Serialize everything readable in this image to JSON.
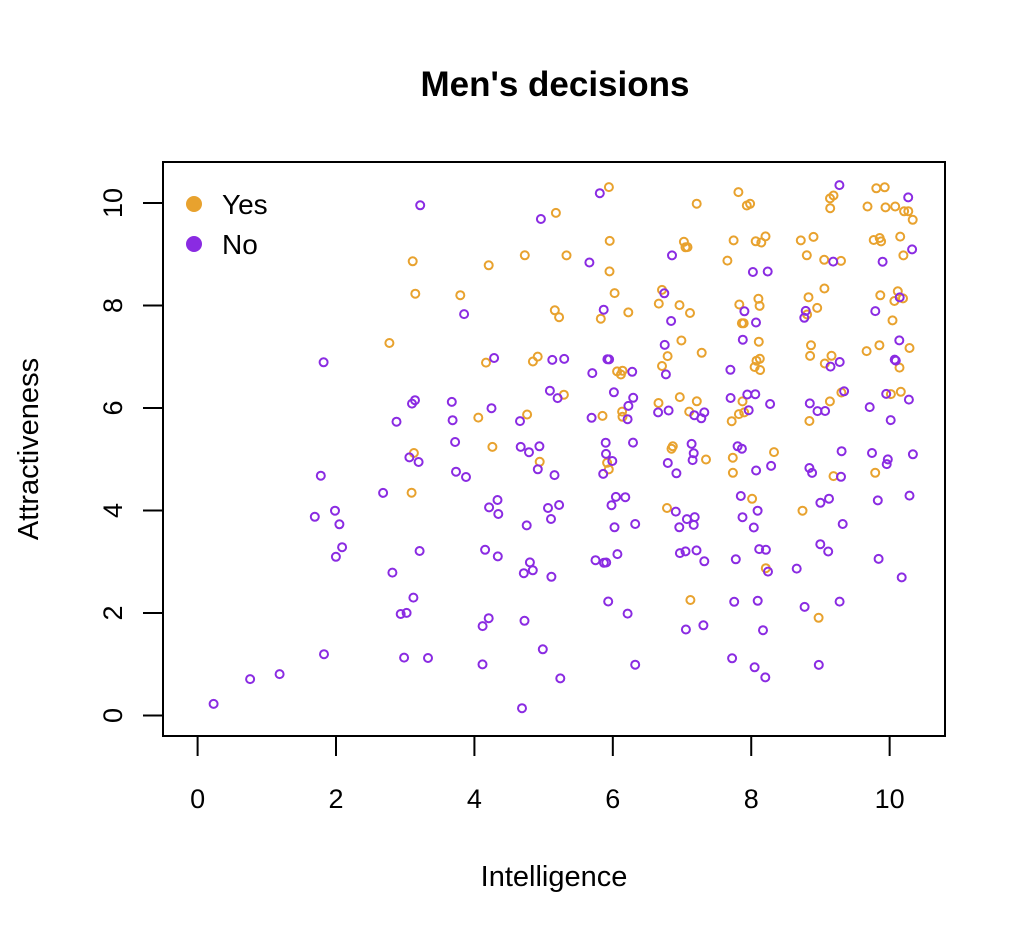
{
  "chart_data": {
    "type": "scatter",
    "title": "Men's decisions",
    "xlabel": "Intelligence",
    "ylabel": "Attractiveness",
    "xlim": [
      -0.5,
      10.8
    ],
    "ylim": [
      -0.4,
      10.8
    ],
    "xticks": [
      0,
      2,
      4,
      6,
      8,
      10
    ],
    "yticks": [
      0,
      2,
      4,
      6,
      8,
      10
    ],
    "grid": false,
    "legend_position": "top-left",
    "jitter": 0.35,
    "series": [
      {
        "name": "Yes",
        "color": "#E8A22E",
        "points": [
          [
            3,
            9
          ],
          [
            3,
            4
          ],
          [
            3,
            5
          ],
          [
            3,
            7
          ],
          [
            3,
            8
          ],
          [
            4,
            7
          ],
          [
            4,
            9
          ],
          [
            4,
            6
          ],
          [
            4,
            8
          ],
          [
            4,
            5
          ],
          [
            5,
            9
          ],
          [
            5,
            8
          ],
          [
            5,
            7
          ],
          [
            5,
            6
          ],
          [
            5,
            5
          ],
          [
            5,
            8
          ],
          [
            5,
            6
          ],
          [
            5,
            7
          ],
          [
            5,
            9
          ],
          [
            5,
            10
          ],
          [
            6,
            9
          ],
          [
            6,
            8
          ],
          [
            6,
            8
          ],
          [
            6,
            7
          ],
          [
            6,
            7
          ],
          [
            6,
            6
          ],
          [
            6,
            6
          ],
          [
            6,
            5
          ],
          [
            6,
            10
          ],
          [
            6,
            9
          ],
          [
            6,
            8
          ],
          [
            6,
            7
          ],
          [
            6,
            6
          ],
          [
            6,
            5
          ],
          [
            7,
            10
          ],
          [
            7,
            9
          ],
          [
            7,
            9
          ],
          [
            7,
            8
          ],
          [
            7,
            8
          ],
          [
            7,
            8
          ],
          [
            7,
            7
          ],
          [
            7,
            7
          ],
          [
            7,
            7
          ],
          [
            7,
            6
          ],
          [
            7,
            6
          ],
          [
            7,
            6
          ],
          [
            7,
            5
          ],
          [
            7,
            5
          ],
          [
            7,
            4
          ],
          [
            7,
            2
          ],
          [
            7,
            9
          ],
          [
            7,
            8
          ],
          [
            7,
            7
          ],
          [
            7,
            6
          ],
          [
            7,
            5
          ],
          [
            8,
            10
          ],
          [
            8,
            10
          ],
          [
            8,
            9
          ],
          [
            8,
            9
          ],
          [
            8,
            9
          ],
          [
            8,
            9
          ],
          [
            8,
            8
          ],
          [
            8,
            8
          ],
          [
            8,
            8
          ],
          [
            8,
            8
          ],
          [
            8,
            7
          ],
          [
            8,
            7
          ],
          [
            8,
            7
          ],
          [
            8,
            7
          ],
          [
            8,
            6
          ],
          [
            8,
            6
          ],
          [
            8,
            6
          ],
          [
            8,
            5
          ],
          [
            8,
            5
          ],
          [
            8,
            4
          ],
          [
            8,
            3
          ],
          [
            8,
            10
          ],
          [
            8,
            9
          ],
          [
            8,
            8
          ],
          [
            8,
            7
          ],
          [
            8,
            6
          ],
          [
            8,
            5
          ],
          [
            9,
            10
          ],
          [
            9,
            10
          ],
          [
            9,
            9
          ],
          [
            9,
            9
          ],
          [
            9,
            9
          ],
          [
            9,
            9
          ],
          [
            9,
            8
          ],
          [
            9,
            8
          ],
          [
            9,
            8
          ],
          [
            9,
            7
          ],
          [
            9,
            7
          ],
          [
            9,
            7
          ],
          [
            9,
            6
          ],
          [
            9,
            6
          ],
          [
            9,
            5
          ],
          [
            9,
            4
          ],
          [
            9,
            2
          ],
          [
            9,
            10
          ],
          [
            9,
            9
          ],
          [
            9,
            8
          ],
          [
            9,
            7
          ],
          [
            9,
            6
          ],
          [
            10,
            10
          ],
          [
            10,
            10
          ],
          [
            10,
            10
          ],
          [
            10,
            10
          ],
          [
            10,
            10
          ],
          [
            10,
            10
          ],
          [
            10,
            9
          ],
          [
            10,
            9
          ],
          [
            10,
            9
          ],
          [
            10,
            9
          ],
          [
            10,
            8
          ],
          [
            10,
            8
          ],
          [
            10,
            8
          ],
          [
            10,
            8
          ],
          [
            10,
            7
          ],
          [
            10,
            7
          ],
          [
            10,
            7
          ],
          [
            10,
            6
          ],
          [
            10,
            6
          ],
          [
            10,
            5
          ],
          [
            10,
            10
          ],
          [
            10,
            10
          ],
          [
            10,
            9
          ],
          [
            10,
            8
          ],
          [
            10,
            7
          ]
        ]
      },
      {
        "name": "No",
        "color": "#8A2BE2",
        "points": [
          [
            0,
            0
          ],
          [
            1,
            1
          ],
          [
            1,
            1
          ],
          [
            2,
            7
          ],
          [
            2,
            4
          ],
          [
            2,
            4
          ],
          [
            2,
            3
          ],
          [
            2,
            5
          ],
          [
            2,
            1
          ],
          [
            2,
            3
          ],
          [
            2,
            4
          ],
          [
            3,
            10
          ],
          [
            3,
            6
          ],
          [
            3,
            6
          ],
          [
            3,
            5
          ],
          [
            3,
            5
          ],
          [
            3,
            4
          ],
          [
            3,
            3
          ],
          [
            3,
            3
          ],
          [
            3,
            2
          ],
          [
            3,
            2
          ],
          [
            3,
            1
          ],
          [
            3,
            1
          ],
          [
            3,
            2
          ],
          [
            3,
            6
          ],
          [
            4,
            8
          ],
          [
            4,
            6
          ],
          [
            4,
            6
          ],
          [
            4,
            5
          ],
          [
            4,
            5
          ],
          [
            4,
            4
          ],
          [
            4,
            4
          ],
          [
            4,
            3
          ],
          [
            4,
            3
          ],
          [
            4,
            2
          ],
          [
            4,
            2
          ],
          [
            4,
            1
          ],
          [
            4,
            7
          ],
          [
            4,
            6
          ],
          [
            4,
            5
          ],
          [
            4,
            4
          ],
          [
            5,
            10
          ],
          [
            5,
            7
          ],
          [
            5,
            6
          ],
          [
            5,
            6
          ],
          [
            5,
            5
          ],
          [
            5,
            5
          ],
          [
            5,
            5
          ],
          [
            5,
            5
          ],
          [
            5,
            4
          ],
          [
            5,
            4
          ],
          [
            5,
            4
          ],
          [
            5,
            3
          ],
          [
            5,
            3
          ],
          [
            5,
            3
          ],
          [
            5,
            2
          ],
          [
            5,
            1
          ],
          [
            5,
            1
          ],
          [
            5,
            0
          ],
          [
            5,
            7
          ],
          [
            5,
            6
          ],
          [
            5,
            5
          ],
          [
            5,
            4
          ],
          [
            5,
            3
          ],
          [
            6,
            10
          ],
          [
            6,
            9
          ],
          [
            6,
            8
          ],
          [
            6,
            7
          ],
          [
            6,
            7
          ],
          [
            6,
            7
          ],
          [
            6,
            6
          ],
          [
            6,
            6
          ],
          [
            6,
            6
          ],
          [
            6,
            6
          ],
          [
            6,
            5
          ],
          [
            6,
            5
          ],
          [
            6,
            5
          ],
          [
            6,
            5
          ],
          [
            6,
            4
          ],
          [
            6,
            4
          ],
          [
            6,
            4
          ],
          [
            6,
            4
          ],
          [
            6,
            3
          ],
          [
            6,
            3
          ],
          [
            6,
            3
          ],
          [
            6,
            2
          ],
          [
            6,
            2
          ],
          [
            6,
            1
          ],
          [
            6,
            7
          ],
          [
            6,
            6
          ],
          [
            6,
            5
          ],
          [
            6,
            4
          ],
          [
            6,
            3
          ],
          [
            7,
            9
          ],
          [
            7,
            8
          ],
          [
            7,
            8
          ],
          [
            7,
            7
          ],
          [
            7,
            7
          ],
          [
            7,
            6
          ],
          [
            7,
            6
          ],
          [
            7,
            6
          ],
          [
            7,
            6
          ],
          [
            7,
            5
          ],
          [
            7,
            5
          ],
          [
            7,
            5
          ],
          [
            7,
            5
          ],
          [
            7,
            4
          ],
          [
            7,
            4
          ],
          [
            7,
            4
          ],
          [
            7,
            4
          ],
          [
            7,
            3
          ],
          [
            7,
            3
          ],
          [
            7,
            3
          ],
          [
            7,
            2
          ],
          [
            7,
            2
          ],
          [
            7,
            6
          ],
          [
            7,
            5
          ],
          [
            7,
            4
          ],
          [
            7,
            3
          ],
          [
            8,
            9
          ],
          [
            8,
            9
          ],
          [
            8,
            8
          ],
          [
            8,
            8
          ],
          [
            8,
            7
          ],
          [
            8,
            7
          ],
          [
            8,
            6
          ],
          [
            8,
            6
          ],
          [
            8,
            6
          ],
          [
            8,
            6
          ],
          [
            8,
            5
          ],
          [
            8,
            5
          ],
          [
            8,
            5
          ],
          [
            8,
            4
          ],
          [
            8,
            4
          ],
          [
            8,
            4
          ],
          [
            8,
            3
          ],
          [
            8,
            3
          ],
          [
            8,
            3
          ],
          [
            8,
            2
          ],
          [
            8,
            2
          ],
          [
            8,
            1
          ],
          [
            8,
            1
          ],
          [
            8,
            1
          ],
          [
            8,
            6
          ],
          [
            8,
            5
          ],
          [
            8,
            4
          ],
          [
            8,
            3
          ],
          [
            8,
            2
          ],
          [
            9,
            10
          ],
          [
            9,
            9
          ],
          [
            9,
            8
          ],
          [
            9,
            8
          ],
          [
            9,
            7
          ],
          [
            9,
            7
          ],
          [
            9,
            6
          ],
          [
            9,
            6
          ],
          [
            9,
            6
          ],
          [
            9,
            5
          ],
          [
            9,
            5
          ],
          [
            9,
            5
          ],
          [
            9,
            4
          ],
          [
            9,
            4
          ],
          [
            9,
            3
          ],
          [
            9,
            3
          ],
          [
            9,
            2
          ],
          [
            9,
            2
          ],
          [
            9,
            1
          ],
          [
            9,
            6
          ],
          [
            9,
            5
          ],
          [
            9,
            4
          ],
          [
            9,
            3
          ],
          [
            10,
            10
          ],
          [
            10,
            9
          ],
          [
            10,
            9
          ],
          [
            10,
            8
          ],
          [
            10,
            8
          ],
          [
            10,
            7
          ],
          [
            10,
            7
          ],
          [
            10,
            6
          ],
          [
            10,
            6
          ],
          [
            10,
            6
          ],
          [
            10,
            5
          ],
          [
            10,
            5
          ],
          [
            10,
            5
          ],
          [
            10,
            4
          ],
          [
            10,
            4
          ],
          [
            10,
            3
          ],
          [
            10,
            3
          ],
          [
            10,
            7
          ],
          [
            10,
            6
          ],
          [
            10,
            5
          ]
        ]
      }
    ]
  }
}
